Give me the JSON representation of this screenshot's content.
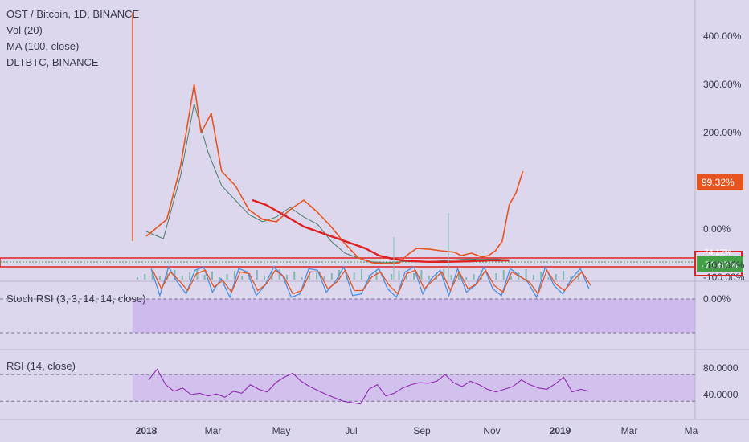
{
  "legend": {
    "symbol": "OST / Bitcoin, 1D, BINANCE",
    "vol": "Vol (20)",
    "ma": "MA (100, close)",
    "compare": "DLTBTC, BINANCE"
  },
  "stoch_label": "Stoch RSI (3, 3, 14, 14, close)",
  "rsi_label": "RSI (14, close)",
  "colors": {
    "background": "#dcd7ec",
    "price_line": "#e8541f",
    "ma_line": "#e02020",
    "candles_up": "#3fa58a",
    "stoch_k": "#4a90e2",
    "stoch_d": "#e8541f",
    "rsi": "#8e2bb0",
    "badge_red": "#e8541f",
    "badge_green": "#43a047"
  },
  "chart_data": [
    {
      "type": "line",
      "panel": "main",
      "yscale": "percent",
      "ylim": [
        -100,
        480
      ],
      "y_ticks": [
        "400.00%",
        "300.00%",
        "200.00%",
        "100.00%",
        "0.00%",
        "-100.00%"
      ],
      "x_ticks": [
        "2018",
        "Mar",
        "May",
        "Jul",
        "Sep",
        "Nov",
        "2019",
        "Mar",
        "Ma"
      ],
      "series": [
        {
          "name": "DLTBTC, BINANCE",
          "points": [
            [
              0.0,
              -15
            ],
            [
              0.6,
              20
            ],
            [
              1.0,
              130
            ],
            [
              1.4,
              300
            ],
            [
              1.6,
              200
            ],
            [
              1.9,
              240
            ],
            [
              2.2,
              120
            ],
            [
              2.6,
              90
            ],
            [
              3.0,
              40
            ],
            [
              3.4,
              20
            ],
            [
              3.8,
              15
            ],
            [
              4.2,
              40
            ],
            [
              4.6,
              60
            ],
            [
              5.0,
              35
            ],
            [
              5.4,
              5
            ],
            [
              5.8,
              -30
            ],
            [
              6.2,
              -60
            ],
            [
              6.6,
              -70
            ],
            [
              7.0,
              -72
            ],
            [
              7.4,
              -70
            ],
            [
              7.6,
              -55
            ],
            [
              7.9,
              -40
            ],
            [
              8.3,
              -42
            ],
            [
              8.6,
              -45
            ],
            [
              9.0,
              -48
            ],
            [
              9.2,
              -55
            ],
            [
              9.5,
              -50
            ],
            [
              9.8,
              -58
            ],
            [
              10.0,
              -55
            ],
            [
              10.2,
              -45
            ],
            [
              10.4,
              -25
            ],
            [
              10.6,
              50
            ],
            [
              10.8,
              75
            ],
            [
              11.0,
              120
            ]
          ]
        },
        {
          "name": "MA (100, close)",
          "points": [
            [
              3.1,
              60
            ],
            [
              3.5,
              50
            ],
            [
              4.0,
              30
            ],
            [
              4.6,
              5
            ],
            [
              5.2,
              -10
            ],
            [
              5.8,
              -25
            ],
            [
              6.4,
              -40
            ],
            [
              6.8,
              -55
            ],
            [
              7.2,
              -62
            ],
            [
              7.6,
              -66
            ],
            [
              8.2,
              -68
            ],
            [
              8.8,
              -68
            ],
            [
              9.4,
              -67
            ],
            [
              10.0,
              -65
            ],
            [
              10.6,
              -65
            ]
          ]
        },
        {
          "name": "OST / Bitcoin",
          "points": [
            [
              0.0,
              -5
            ],
            [
              0.5,
              -20
            ],
            [
              1.0,
              110
            ],
            [
              1.4,
              260
            ],
            [
              1.8,
              160
            ],
            [
              2.2,
              90
            ],
            [
              2.6,
              60
            ],
            [
              3.0,
              30
            ],
            [
              3.4,
              15
            ],
            [
              3.8,
              25
            ],
            [
              4.2,
              45
            ],
            [
              4.6,
              25
            ],
            [
              5.0,
              10
            ],
            [
              5.4,
              -25
            ],
            [
              5.8,
              -50
            ],
            [
              6.2,
              -60
            ],
            [
              6.6,
              -68
            ],
            [
              7.0,
              -70
            ],
            [
              7.4,
              -68
            ],
            [
              7.8,
              -66
            ],
            [
              8.2,
              -68
            ],
            [
              8.6,
              -66
            ],
            [
              9.0,
              -64
            ],
            [
              9.4,
              -62
            ],
            [
              9.8,
              -63
            ],
            [
              10.2,
              -62
            ],
            [
              10.6,
              -64
            ]
          ]
        }
      ],
      "badges": [
        "99.32%",
        "-71.67%",
        "-74.12%"
      ]
    },
    {
      "type": "line",
      "panel": "stoch_rsi",
      "ylim": [
        -100,
        0
      ],
      "y_ticks": [
        "0.00%",
        "-100.00%"
      ],
      "series": [
        {
          "name": "%K",
          "values": [
            -90,
            -10,
            -95,
            -50,
            -15,
            -85,
            -95,
            -20,
            -60,
            -5,
            -90,
            -80,
            -10,
            -40,
            -95,
            -70,
            -5,
            -15,
            -90,
            -85,
            -20,
            -50,
            -95,
            -10,
            -15,
            -70,
            -90,
            -30,
            -5,
            -80,
            -95,
            -15,
            -60,
            -85,
            -10,
            -90,
            -20,
            -40,
            -95,
            -30,
            -10,
            -90,
            -70,
            -50,
            -5,
            -95,
            -40,
            -15,
            -60,
            -90,
            -30
          ]
        },
        {
          "name": "%D",
          "values": [
            -85,
            -30,
            -80,
            -55,
            -25,
            -75,
            -85,
            -35,
            -55,
            -20,
            -80,
            -75,
            -25,
            -45,
            -85,
            -65,
            -15,
            -25,
            -80,
            -80,
            -30,
            -50,
            -85,
            -25,
            -25,
            -65,
            -80,
            -40,
            -15,
            -75,
            -85,
            -30,
            -55,
            -80,
            -25,
            -80,
            -30,
            -45,
            -85,
            -40,
            -20,
            -80,
            -65,
            -50,
            -15,
            -85,
            -45,
            -25,
            -55,
            -80,
            -40
          ]
        }
      ]
    },
    {
      "type": "line",
      "panel": "rsi",
      "ylim": [
        20,
        85
      ],
      "y_ticks": [
        "80.0000",
        "40.0000"
      ],
      "series": [
        {
          "name": "RSI (14, close)",
          "values": [
            62,
            78,
            55,
            45,
            50,
            40,
            42,
            38,
            41,
            36,
            45,
            42,
            55,
            48,
            44,
            58,
            66,
            72,
            60,
            52,
            46,
            40,
            35,
            30,
            28,
            26,
            48,
            55,
            38,
            42,
            50,
            55,
            58,
            57,
            60,
            70,
            58,
            52,
            60,
            55,
            48,
            44,
            48,
            52,
            62,
            55,
            50,
            48,
            56,
            66,
            44,
            48,
            45
          ]
        }
      ]
    }
  ]
}
